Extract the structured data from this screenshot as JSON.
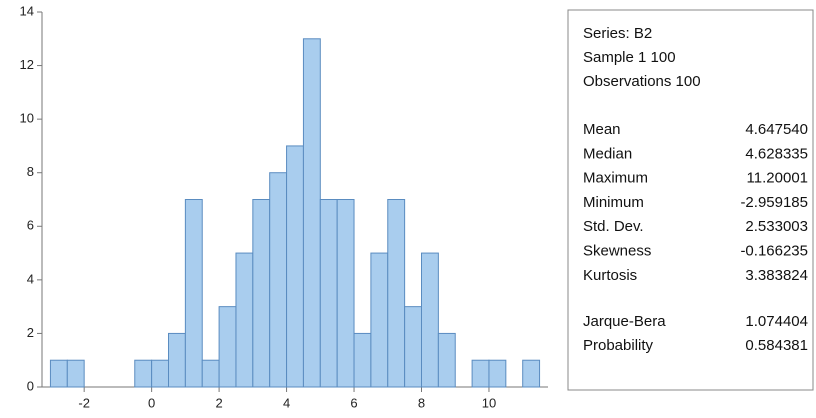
{
  "chart_data": {
    "type": "histogram",
    "bins": [
      -3,
      -2.5,
      -2,
      -1.5,
      -1,
      -0.5,
      0,
      0.5,
      1,
      1.5,
      2,
      2.5,
      3,
      3.5,
      4,
      4.5,
      5,
      5.5,
      6,
      6.5,
      7,
      7.5,
      8,
      8.5,
      9,
      9.5,
      10,
      10.5,
      11,
      11.5
    ],
    "values": [
      1,
      1,
      0,
      0,
      0,
      1,
      1,
      2,
      7,
      1,
      3,
      5,
      7,
      8,
      9,
      13,
      7,
      7,
      2,
      5,
      7,
      3,
      5,
      2,
      0,
      1,
      1,
      0,
      1
    ],
    "color": "#a9cdee",
    "edge_color": "#5a8cc0",
    "xlim": [
      -3.25,
      11.75
    ],
    "xticks": [
      -2,
      0,
      2,
      4,
      6,
      8,
      10
    ],
    "ylim": [
      0,
      14
    ],
    "yticks": [
      0,
      2,
      4,
      6,
      8,
      10,
      12,
      14
    ],
    "stats_header": [
      "Series: B2",
      "Sample 1 100",
      "Observations 100"
    ],
    "stats": [
      [
        "Mean",
        "4.647540"
      ],
      [
        "Median",
        "4.628335"
      ],
      [
        "Maximum",
        "11.20001"
      ],
      [
        "Minimum",
        "-2.959185"
      ],
      [
        "Std. Dev.",
        "2.533003"
      ],
      [
        "Skewness",
        "-0.166235"
      ],
      [
        "Kurtosis",
        "3.383824"
      ]
    ],
    "tests": [
      [
        "Jarque-Bera",
        "1.074404"
      ],
      [
        "Probability",
        "0.584381"
      ]
    ]
  }
}
